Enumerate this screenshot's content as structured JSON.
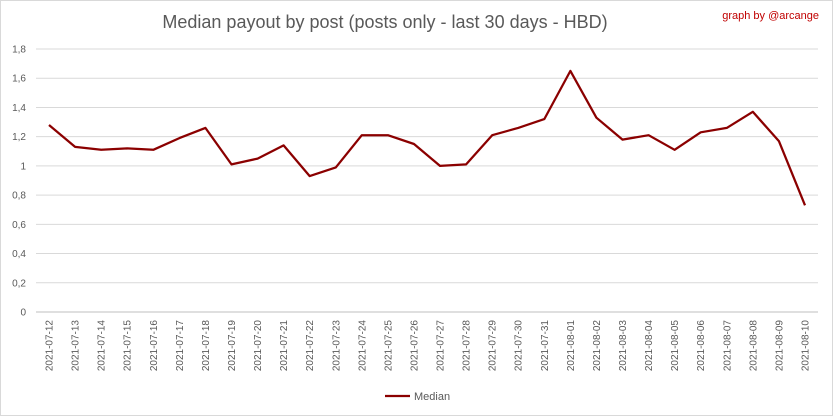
{
  "chart_data": {
    "type": "line",
    "title": "Median payout by post (posts only - last 30 days - HBD)",
    "credit": "graph by @arcange",
    "xlabel": "",
    "ylabel": "",
    "ylim": [
      0,
      1.8
    ],
    "y_ticks": [
      "0",
      "0,2",
      "0,4",
      "0,6",
      "0,8",
      "1",
      "1,2",
      "1,4",
      "1,6",
      "1,8"
    ],
    "grid": true,
    "legend_position": "bottom",
    "categories": [
      "2021-07-12",
      "2021-07-13",
      "2021-07-14",
      "2021-07-15",
      "2021-07-16",
      "2021-07-17",
      "2021-07-18",
      "2021-07-19",
      "2021-07-20",
      "2021-07-21",
      "2021-07-22",
      "2021-07-23",
      "2021-07-24",
      "2021-07-25",
      "2021-07-26",
      "2021-07-27",
      "2021-07-28",
      "2021-07-29",
      "2021-07-30",
      "2021-07-31",
      "2021-08-01",
      "2021-08-02",
      "2021-08-03",
      "2021-08-04",
      "2021-08-05",
      "2021-08-06",
      "2021-08-07",
      "2021-08-08",
      "2021-08-09",
      "2021-08-10"
    ],
    "series": [
      {
        "name": "Median",
        "color": "#8b0000",
        "values": [
          1.28,
          1.13,
          1.11,
          1.12,
          1.11,
          1.19,
          1.26,
          1.01,
          1.05,
          1.14,
          0.93,
          0.99,
          1.21,
          1.21,
          1.15,
          1.0,
          1.01,
          1.21,
          1.26,
          1.32,
          1.65,
          1.33,
          1.18,
          1.21,
          1.11,
          1.23,
          1.26,
          1.37,
          1.17,
          0.73
        ]
      }
    ]
  }
}
